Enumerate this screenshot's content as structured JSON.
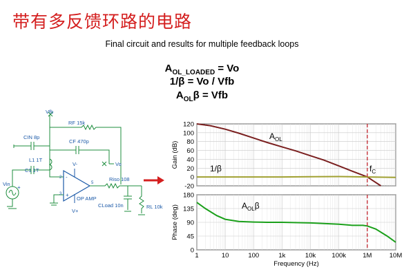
{
  "slide": {
    "title": "带有多反馈环路的电路",
    "subtitle": "Final circuit and results for multiple feedback loops",
    "equations": {
      "eq1_main": "A",
      "eq1_sub": "OL_LOADED",
      "eq1_rest": " = Vo",
      "eq2": "1/β  = Vo / Vfb",
      "eq3_main": "A",
      "eq3_sub": "OL",
      "eq3_rest": "β = Vfb"
    }
  },
  "circuit": {
    "vfb": "Vfb",
    "rf": "RF 15k",
    "cin": "CIN 8p",
    "cf": "CF 470p",
    "l1": "L1 1T",
    "c1": "C1 1T",
    "vminus": "V-",
    "vplus": "V+",
    "vo": "Vo",
    "riso": "Riso 108",
    "cload": "CLoad 10n",
    "rl": "RL 10k",
    "vin": "Vin",
    "opamp": "OP AMP",
    "pin2": "2",
    "pin3": "3",
    "pin5": "5",
    "plus": "+",
    "minus": "-"
  },
  "chart_data": [
    {
      "type": "line",
      "ylabel": "Gain (dB)",
      "xscale": "log",
      "xlim": [
        1,
        10000000
      ],
      "ylim": [
        -20,
        120
      ],
      "yticks": [
        "120",
        "100",
        "80",
        "60",
        "40",
        "20",
        "0",
        "-20"
      ],
      "series": [
        {
          "name": "AOL",
          "color": "#7a1f1f",
          "x": [
            1,
            3,
            10,
            30,
            100,
            300,
            1000,
            3000,
            10000,
            30000,
            100000,
            300000,
            1000000,
            3000000
          ],
          "y": [
            120,
            116,
            108,
            99,
            88,
            78,
            68,
            59,
            48,
            38,
            25,
            13,
            0,
            -20
          ]
        },
        {
          "name": "1/β",
          "color": "#a0a030",
          "x": [
            1,
            10,
            100,
            1000,
            10000,
            100000,
            1000000,
            10000000
          ],
          "y": [
            0,
            0,
            0,
            0,
            0.5,
            1,
            0,
            -1
          ]
        }
      ],
      "annotations": {
        "aol_main": "A",
        "aol_sub": "OL",
        "inv_beta": "1/β",
        "fc_main": "f",
        "fc_sub": "C"
      },
      "marker_x": 1000000
    },
    {
      "type": "line",
      "ylabel": "Phase (deg)",
      "xlabel": "Frequency (Hz)",
      "xscale": "log",
      "xlim": [
        1,
        10000000
      ],
      "ylim": [
        0,
        180
      ],
      "yticks": [
        "180",
        "135",
        "90",
        "45",
        "0"
      ],
      "xticks": [
        "1",
        "10",
        "100",
        "1k",
        "10k",
        "100k",
        "1M",
        "10M"
      ],
      "series": [
        {
          "name": "AOLβ",
          "color": "#1aa01a",
          "x": [
            1,
            2,
            5,
            10,
            30,
            100,
            300,
            1000,
            10000,
            100000,
            300000,
            700000,
            1000000,
            2000000,
            5000000,
            10000000
          ],
          "y": [
            155,
            135,
            112,
            100,
            93,
            91,
            90,
            90,
            88,
            84,
            80,
            80,
            78,
            68,
            45,
            25
          ]
        }
      ],
      "annotations": {
        "aolb_main": "A",
        "aolb_sub": "OL",
        "aolb_rest": "β"
      },
      "marker_x": 1000000
    }
  ]
}
